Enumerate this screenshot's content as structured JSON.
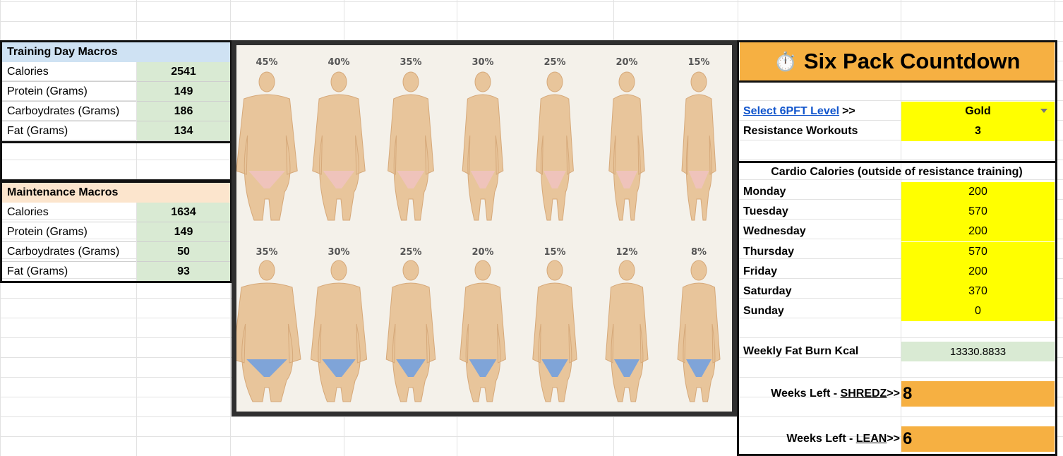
{
  "training": {
    "title": "Training Day Macros",
    "rows": [
      {
        "label": "Calories",
        "value": "2541"
      },
      {
        "label": "Protein (Grams)",
        "value": "149"
      },
      {
        "label": "Carboydrates (Grams)",
        "value": "186"
      },
      {
        "label": "Fat (Grams)",
        "value": "134"
      }
    ]
  },
  "maintenance": {
    "title": "Maintenance Macros",
    "rows": [
      {
        "label": "Calories",
        "value": "1634"
      },
      {
        "label": "Protein (Grams)",
        "value": "149"
      },
      {
        "label": "Carboydrates (Grams)",
        "value": "50"
      },
      {
        "label": "Fat (Grams)",
        "value": "93"
      }
    ]
  },
  "chart_image": {
    "female_labels": [
      "45%",
      "40%",
      "35%",
      "30%",
      "25%",
      "20%",
      "15%"
    ],
    "male_labels": [
      "35%",
      "30%",
      "25%",
      "20%",
      "15%",
      "12%",
      "8%"
    ]
  },
  "countdown": {
    "title": "Six Pack Countdown",
    "timer_icon": "⏱️",
    "level_link": "Select 6PFT Level",
    "level_arrow": ">>",
    "level_value": "Gold",
    "resistance_label": "Resistance Workouts",
    "resistance_value": "3",
    "cardio_header": "Cardio Calories (outside of resistance training)",
    "days": [
      {
        "day": "Monday",
        "value": "200"
      },
      {
        "day": "Tuesday",
        "value": "570"
      },
      {
        "day": "Wednesday",
        "value": "200"
      },
      {
        "day": "Thursday",
        "value": "570"
      },
      {
        "day": "Friday",
        "value": "200"
      },
      {
        "day": "Saturday",
        "value": "370"
      },
      {
        "day": "Sunday",
        "value": "0"
      }
    ],
    "weekly_label": "Weekly Fat Burn Kcal",
    "weekly_value": "13330.8833",
    "shredz_prefix": "Weeks Left - ",
    "shredz_word": "SHREDZ",
    "shredz_suffix": " >>",
    "shredz_value": "8",
    "lean_prefix": "Weeks Left - ",
    "lean_word": "LEAN",
    "lean_suffix": " >>",
    "lean_value": "6"
  },
  "colors": {
    "training_header": "#cfe2f3",
    "maintenance_header": "#fce5cd",
    "value_green": "#d9ead3",
    "input_yellow": "#ffff00",
    "countdown_orange": "#f6b042"
  }
}
